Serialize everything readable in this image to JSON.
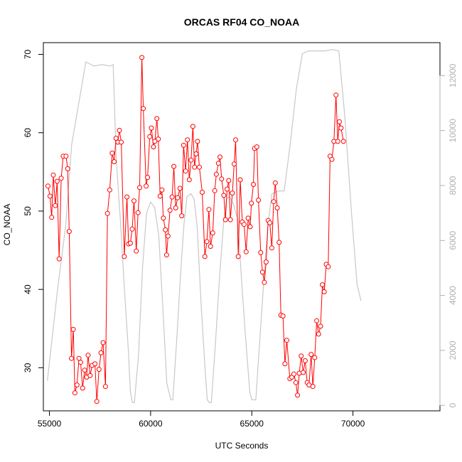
{
  "chart_data": {
    "type": "line",
    "title": "ORCAS RF04 CO_NOAA",
    "xlabel": "UTC Seconds",
    "ylabel": "CO_NOAA",
    "xlim": [
      54700,
      74300
    ],
    "ylim": [
      24.5,
      71.5
    ],
    "y2lim": [
      -200,
      13200
    ],
    "x_ticks": [
      55000,
      60000,
      65000,
      70000
    ],
    "y_ticks": [
      30,
      40,
      50,
      60,
      70
    ],
    "y2_ticks": [
      0,
      2000,
      4000,
      6000,
      8000,
      10000,
      12000
    ],
    "colors": {
      "co": "#ff0000",
      "altitude": "#c8c8c8",
      "frame": "#000000",
      "right_axis": "#b0b0b0"
    },
    "series": [
      {
        "key": "co",
        "style": "line+points",
        "values": [
          [
            54930,
            53.2
          ],
          [
            55030,
            51.9
          ],
          [
            55110,
            49.2
          ],
          [
            55190,
            54.6
          ],
          [
            55290,
            50.7
          ],
          [
            55380,
            53.8
          ],
          [
            55480,
            43.9
          ],
          [
            55580,
            54.2
          ],
          [
            55680,
            57.0
          ],
          [
            55820,
            57.0
          ],
          [
            55900,
            55.4
          ],
          [
            55980,
            47.4
          ],
          [
            56090,
            31.2
          ],
          [
            56180,
            34.9
          ],
          [
            56260,
            26.8
          ],
          [
            56360,
            27.8
          ],
          [
            56460,
            31.2
          ],
          [
            56540,
            30.7
          ],
          [
            56640,
            27.4
          ],
          [
            56740,
            29.7
          ],
          [
            56840,
            28.8
          ],
          [
            56910,
            31.6
          ],
          [
            57010,
            29.0
          ],
          [
            57110,
            30.3
          ],
          [
            57250,
            30.5
          ],
          [
            57340,
            25.7
          ],
          [
            57450,
            29.8
          ],
          [
            57550,
            31.9
          ],
          [
            57650,
            33.2
          ],
          [
            57770,
            27.6
          ],
          [
            57870,
            49.7
          ],
          [
            57980,
            52.7
          ],
          [
            58100,
            57.4
          ],
          [
            58200,
            56.3
          ],
          [
            58290,
            59.3
          ],
          [
            58380,
            58.8
          ],
          [
            58460,
            60.3
          ],
          [
            58550,
            58.8
          ],
          [
            58700,
            44.2
          ],
          [
            58830,
            51.8
          ],
          [
            58910,
            45.8
          ],
          [
            59000,
            45.9
          ],
          [
            59090,
            47.7
          ],
          [
            59180,
            51.3
          ],
          [
            59290,
            44.9
          ],
          [
            59380,
            49.8
          ],
          [
            59460,
            53.0
          ],
          [
            59570,
            69.6
          ],
          [
            59640,
            63.1
          ],
          [
            59780,
            53.2
          ],
          [
            59850,
            54.3
          ],
          [
            59960,
            59.5
          ],
          [
            60040,
            60.6
          ],
          [
            60140,
            58.2
          ],
          [
            60210,
            58.9
          ],
          [
            60310,
            61.8
          ],
          [
            60380,
            59.2
          ],
          [
            60470,
            51.9
          ],
          [
            60560,
            52.7
          ],
          [
            60630,
            49.1
          ],
          [
            60730,
            47.6
          ],
          [
            60790,
            44.4
          ],
          [
            60860,
            46.8
          ],
          [
            60960,
            50.1
          ],
          [
            61060,
            51.8
          ],
          [
            61150,
            55.7
          ],
          [
            61240,
            50.4
          ],
          [
            61330,
            51.7
          ],
          [
            61450,
            52.9
          ],
          [
            61540,
            49.4
          ],
          [
            61630,
            58.4
          ],
          [
            61730,
            55.1
          ],
          [
            61820,
            59.1
          ],
          [
            61910,
            54.0
          ],
          [
            62000,
            56.5
          ],
          [
            62090,
            60.8
          ],
          [
            62170,
            55.6
          ],
          [
            62250,
            57.3
          ],
          [
            62320,
            58.9
          ],
          [
            62410,
            55.6
          ],
          [
            62550,
            52.4
          ],
          [
            62680,
            44.2
          ],
          [
            62780,
            46.1
          ],
          [
            62880,
            50.2
          ],
          [
            62960,
            45.5
          ],
          [
            63070,
            47.2
          ],
          [
            63170,
            52.6
          ],
          [
            63250,
            54.7
          ],
          [
            63350,
            56.1
          ],
          [
            63430,
            56.9
          ],
          [
            63510,
            54.1
          ],
          [
            63620,
            52.0
          ],
          [
            63700,
            48.9
          ],
          [
            63780,
            52.8
          ],
          [
            63860,
            53.9
          ],
          [
            63940,
            48.9
          ],
          [
            64040,
            52.3
          ],
          [
            64130,
            56.0
          ],
          [
            64200,
            59.1
          ],
          [
            64330,
            44.2
          ],
          [
            64430,
            54.0
          ],
          [
            64530,
            48.6
          ],
          [
            64620,
            48.3
          ],
          [
            64720,
            44.8
          ],
          [
            64820,
            49.1
          ],
          [
            64920,
            48.0
          ],
          [
            64980,
            51.0
          ],
          [
            65080,
            53.4
          ],
          [
            65140,
            58.0
          ],
          [
            65250,
            58.2
          ],
          [
            65330,
            51.4
          ],
          [
            65440,
            44.7
          ],
          [
            65530,
            42.2
          ],
          [
            65620,
            40.9
          ],
          [
            65710,
            43.5
          ],
          [
            65810,
            48.8
          ],
          [
            65890,
            48.5
          ],
          [
            65990,
            45.3
          ],
          [
            66080,
            51.2
          ],
          [
            66160,
            53.6
          ],
          [
            66260,
            50.4
          ],
          [
            66350,
            46.0
          ],
          [
            66440,
            36.7
          ],
          [
            66540,
            36.6
          ],
          [
            66640,
            30.5
          ],
          [
            66730,
            33.5
          ],
          [
            66880,
            28.6
          ],
          [
            66980,
            28.8
          ],
          [
            67080,
            29.2
          ],
          [
            67180,
            28.1
          ],
          [
            67260,
            26.5
          ],
          [
            67350,
            29.3
          ],
          [
            67440,
            31.5
          ],
          [
            67540,
            29.4
          ],
          [
            67640,
            30.9
          ],
          [
            67740,
            28.1
          ],
          [
            67830,
            27.8
          ],
          [
            67930,
            31.7
          ],
          [
            68020,
            27.6
          ],
          [
            68110,
            31.3
          ],
          [
            68210,
            36.0
          ],
          [
            68300,
            34.3
          ],
          [
            68400,
            35.3
          ],
          [
            68490,
            40.6
          ],
          [
            68580,
            39.7
          ],
          [
            68680,
            43.2
          ],
          [
            68780,
            42.9
          ],
          [
            68870,
            57.0
          ],
          [
            68960,
            56.6
          ],
          [
            69060,
            58.9
          ],
          [
            69160,
            64.8
          ],
          [
            69250,
            58.9
          ],
          [
            69330,
            61.4
          ],
          [
            69410,
            60.6
          ],
          [
            69530,
            58.9
          ]
        ],
        "note_xscale": "x values in UTC seconds"
      },
      {
        "key": "altitude",
        "style": "line",
        "axis": "right",
        "values": [
          [
            54900,
            900
          ],
          [
            55400,
            4200
          ],
          [
            55800,
            6500
          ],
          [
            56100,
            9500
          ],
          [
            56500,
            11200
          ],
          [
            56800,
            12500
          ],
          [
            57200,
            12350
          ],
          [
            57600,
            12400
          ],
          [
            58000,
            12350
          ],
          [
            58150,
            12400
          ],
          [
            58300,
            9000
          ],
          [
            58500,
            6800
          ],
          [
            58700,
            4300
          ],
          [
            58900,
            2000
          ],
          [
            59000,
            500
          ],
          [
            59100,
            100
          ],
          [
            59200,
            100
          ],
          [
            59400,
            1800
          ],
          [
            59600,
            5000
          ],
          [
            59800,
            7000
          ],
          [
            60000,
            7400
          ],
          [
            60200,
            7200
          ],
          [
            60400,
            6200
          ],
          [
            60600,
            3600
          ],
          [
            60800,
            800
          ],
          [
            61000,
            200
          ],
          [
            61100,
            200
          ],
          [
            61300,
            2500
          ],
          [
            61500,
            5000
          ],
          [
            61650,
            6600
          ],
          [
            61800,
            7600
          ],
          [
            62000,
            7700
          ],
          [
            62150,
            7500
          ],
          [
            62300,
            6500
          ],
          [
            62500,
            3600
          ],
          [
            62700,
            1200
          ],
          [
            62800,
            200
          ],
          [
            62900,
            100
          ],
          [
            63000,
            100
          ],
          [
            63200,
            2200
          ],
          [
            63400,
            4600
          ],
          [
            63600,
            6600
          ],
          [
            63750,
            7500
          ],
          [
            63900,
            7600
          ],
          [
            64100,
            7300
          ],
          [
            64300,
            6800
          ],
          [
            64500,
            4500
          ],
          [
            64700,
            2400
          ],
          [
            64900,
            500
          ],
          [
            65000,
            200
          ],
          [
            65200,
            200
          ],
          [
            65400,
            2400
          ],
          [
            65600,
            4600
          ],
          [
            65800,
            6600
          ],
          [
            66000,
            7700
          ],
          [
            66300,
            7800
          ],
          [
            66600,
            7800
          ],
          [
            66900,
            9500
          ],
          [
            67200,
            11500
          ],
          [
            67500,
            12800
          ],
          [
            67800,
            12900
          ],
          [
            68200,
            12900
          ],
          [
            68600,
            12900
          ],
          [
            69000,
            12950
          ],
          [
            69300,
            12900
          ],
          [
            69600,
            10500
          ],
          [
            69900,
            7300
          ],
          [
            70200,
            4400
          ],
          [
            70400,
            3800
          ]
        ]
      }
    ]
  }
}
